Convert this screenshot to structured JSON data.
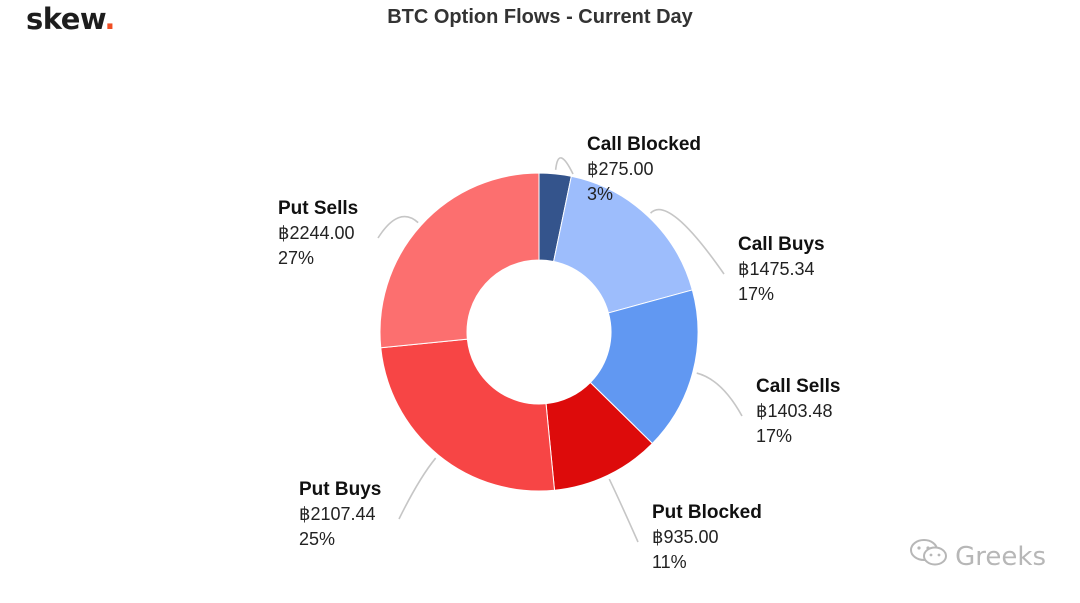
{
  "brand": {
    "logo_text": "skew",
    "logo_dot": ".",
    "logo_dot_color": "#f04e23"
  },
  "chart_data": {
    "type": "pie",
    "style": "donut",
    "title": "BTC Option Flows - Current Day",
    "currency_symbol": "฿",
    "slices": [
      {
        "label": "Call Blocked",
        "value": 275.0,
        "value_text": "฿275.00",
        "percent_text": "3%",
        "color": "#34548c"
      },
      {
        "label": "Call Buys",
        "value": 1475.34,
        "value_text": "฿1475.34",
        "percent_text": "17%",
        "color": "#9dbdfc"
      },
      {
        "label": "Call Sells",
        "value": 1403.48,
        "value_text": "฿1403.48",
        "percent_text": "17%",
        "color": "#6198f2"
      },
      {
        "label": "Put Blocked",
        "value": 935.0,
        "value_text": "฿935.00",
        "percent_text": "11%",
        "color": "#dd0b0b"
      },
      {
        "label": "Put Buys",
        "value": 2107.44,
        "value_text": "฿2107.44",
        "percent_text": "25%",
        "color": "#f74545"
      },
      {
        "label": "Put Sells",
        "value": 2244.0,
        "value_text": "฿2244.00",
        "percent_text": "27%",
        "color": "#fc6f6f"
      }
    ]
  },
  "watermark": {
    "icon": "wechat-icon",
    "text": "Greeks"
  }
}
